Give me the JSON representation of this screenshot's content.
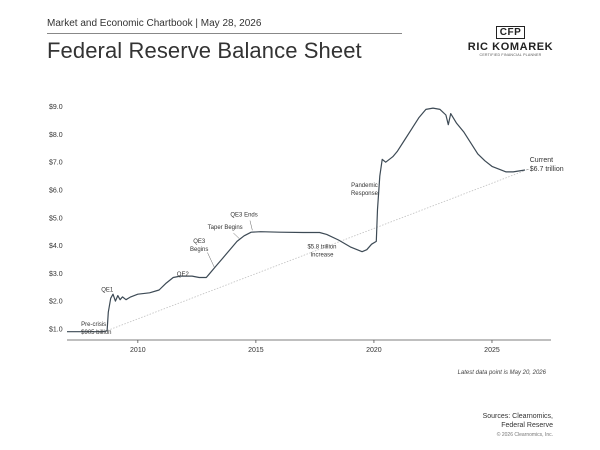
{
  "header": {
    "subtitle_line": "Market and Economic Chartbook | May 28, 2026",
    "title": "Federal Reserve Balance Sheet"
  },
  "logo": {
    "mark": "CFP",
    "name": "RIC KOMAREK",
    "tagline": "CERTIFIED FINANCIAL PLANNER"
  },
  "chart_data": {
    "type": "line",
    "title": "Federal Reserve Balance Sheet",
    "xlabel": "",
    "ylabel": "",
    "xlim": [
      2007.0,
      2027.5
    ],
    "ylim": [
      0.6,
      9.6
    ],
    "x_ticks": [
      2010,
      2015,
      2020,
      2025
    ],
    "x_tick_labels": [
      "2010",
      "2015",
      "2020",
      "2025"
    ],
    "y_ticks": [
      1,
      2,
      3,
      4,
      5,
      6,
      7,
      8,
      9
    ],
    "y_tick_labels": [
      "$1.0",
      "$2.0",
      "$3.0",
      "$4.0",
      "$5.0",
      "$6.0",
      "$7.0",
      "$8.0",
      "$9.0"
    ],
    "grid": false,
    "legend": "none",
    "series": [
      {
        "color": "#3d4a55",
        "points": [
          [
            2007.0,
            0.9
          ],
          [
            2008.5,
            0.9
          ],
          [
            2008.7,
            0.93
          ],
          [
            2008.75,
            1.6
          ],
          [
            2008.85,
            2.1
          ],
          [
            2008.95,
            2.25
          ],
          [
            2009.05,
            2.0
          ],
          [
            2009.15,
            2.2
          ],
          [
            2009.25,
            2.05
          ],
          [
            2009.35,
            2.15
          ],
          [
            2009.5,
            2.05
          ],
          [
            2009.7,
            2.15
          ],
          [
            2010.0,
            2.25
          ],
          [
            2010.5,
            2.3
          ],
          [
            2010.9,
            2.4
          ],
          [
            2011.2,
            2.65
          ],
          [
            2011.5,
            2.85
          ],
          [
            2011.8,
            2.9
          ],
          [
            2012.3,
            2.9
          ],
          [
            2012.6,
            2.85
          ],
          [
            2012.9,
            2.85
          ],
          [
            2013.0,
            2.95
          ],
          [
            2013.3,
            3.25
          ],
          [
            2013.6,
            3.55
          ],
          [
            2013.9,
            3.85
          ],
          [
            2014.2,
            4.15
          ],
          [
            2014.5,
            4.35
          ],
          [
            2014.8,
            4.48
          ],
          [
            2015.2,
            4.5
          ],
          [
            2016.0,
            4.48
          ],
          [
            2017.0,
            4.47
          ],
          [
            2017.7,
            4.47
          ],
          [
            2018.0,
            4.4
          ],
          [
            2018.5,
            4.2
          ],
          [
            2019.0,
            3.95
          ],
          [
            2019.5,
            3.78
          ],
          [
            2019.7,
            3.85
          ],
          [
            2019.9,
            4.05
          ],
          [
            2020.1,
            4.15
          ],
          [
            2020.15,
            5.3
          ],
          [
            2020.25,
            6.5
          ],
          [
            2020.35,
            7.1
          ],
          [
            2020.5,
            7.0
          ],
          [
            2020.8,
            7.2
          ],
          [
            2021.0,
            7.4
          ],
          [
            2021.3,
            7.8
          ],
          [
            2021.6,
            8.2
          ],
          [
            2021.9,
            8.6
          ],
          [
            2022.2,
            8.9
          ],
          [
            2022.5,
            8.95
          ],
          [
            2022.8,
            8.9
          ],
          [
            2023.05,
            8.7
          ],
          [
            2023.15,
            8.35
          ],
          [
            2023.25,
            8.75
          ],
          [
            2023.5,
            8.4
          ],
          [
            2023.8,
            8.1
          ],
          [
            2024.1,
            7.7
          ],
          [
            2024.4,
            7.3
          ],
          [
            2024.7,
            7.05
          ],
          [
            2025.0,
            6.85
          ],
          [
            2025.3,
            6.75
          ],
          [
            2025.6,
            6.65
          ],
          [
            2025.9,
            6.65
          ],
          [
            2026.4,
            6.72
          ]
        ]
      }
    ],
    "trend": {
      "points": [
        [
          2008.6,
          0.905
        ],
        [
          2026.4,
          6.7
        ]
      ],
      "color": "#c0c0c0"
    },
    "annotations": [
      {
        "id": "pre-crisis",
        "lines": [
          "Pre-crisis",
          "$905 billion"
        ],
        "x": 2007.6,
        "y": 1.1
      },
      {
        "id": "qe1",
        "lines": [
          "QE1"
        ],
        "x": 2008.45,
        "y": 2.35
      },
      {
        "id": "qe2",
        "lines": [
          "QE2"
        ],
        "x": 2011.65,
        "y": 2.9
      },
      {
        "id": "qe3-begins",
        "lines": [
          "QE3",
          "Begins"
        ],
        "x": 2012.6,
        "y": 4.1
      },
      {
        "id": "taper-begins",
        "lines": [
          "Taper Begins"
        ],
        "x": 2013.7,
        "y": 4.6
      },
      {
        "id": "qe3-ends",
        "lines": [
          "QE3 Ends"
        ],
        "x": 2014.5,
        "y": 5.05
      },
      {
        "id": "5-8-trillion-increase",
        "lines": [
          "$5.8 trillion",
          "Increase"
        ],
        "x": 2017.8,
        "y": 3.9
      },
      {
        "id": "pandemic-response",
        "lines": [
          "Pandemic",
          "Response"
        ],
        "x": 2019.6,
        "y": 6.1
      },
      {
        "id": "current",
        "lines": [
          "Current",
          "$6.7 trillion"
        ],
        "x": 2026.6,
        "y": 7.0
      }
    ]
  },
  "footer": {
    "latest_note": "Latest data point is May 20, 2026",
    "sources_line1": "Sources: Clearnomics,",
    "sources_line2": "Federal Reserve",
    "copyright": "© 2026 Clearnomics, Inc."
  }
}
